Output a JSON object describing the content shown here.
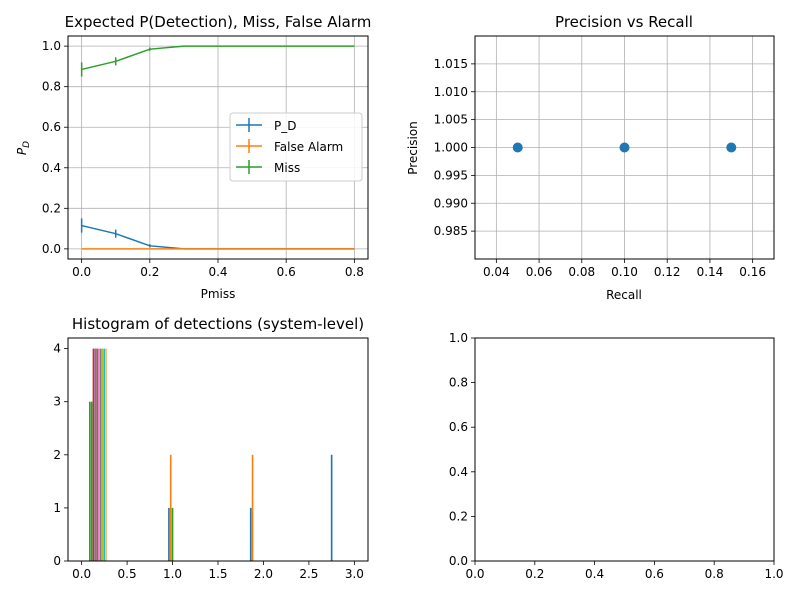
{
  "chart_data": [
    {
      "type": "line",
      "title": "Expected P(Detection), Miss, False Alarm",
      "xlabel": "Pmiss",
      "ylabel": "P_D",
      "xlim": [
        -0.04,
        0.84
      ],
      "ylim": [
        -0.05,
        1.05
      ],
      "xticks": [
        0.0,
        0.2,
        0.4,
        0.6,
        0.8
      ],
      "xtick_labels": [
        "0.0",
        "0.2",
        "0.4",
        "0.6",
        "0.8"
      ],
      "yticks": [
        0.0,
        0.2,
        0.4,
        0.6,
        0.8,
        1.0
      ],
      "ytick_labels": [
        "0.0",
        "0.2",
        "0.4",
        "0.6",
        "0.8",
        "1.0"
      ],
      "grid": true,
      "legend_position": "center-right",
      "x": [
        0.0,
        0.1,
        0.2,
        0.3,
        0.4,
        0.5,
        0.6,
        0.7,
        0.8
      ],
      "series": [
        {
          "name": "P_D",
          "color": "#1f77b4",
          "values": [
            0.115,
            0.075,
            0.015,
            0.0,
            0.0,
            0.0,
            0.0,
            0.0,
            0.0
          ],
          "errors": [
            0.035,
            0.02,
            0.008,
            0.0,
            0.0,
            0.0,
            0.0,
            0.0,
            0.0
          ]
        },
        {
          "name": "False Alarm",
          "color": "#ff7f0e",
          "values": [
            0.0,
            0.0,
            0.0,
            0.0,
            0.0,
            0.0,
            0.0,
            0.0,
            0.0
          ],
          "errors": [
            0.0,
            0.0,
            0.0,
            0.0,
            0.0,
            0.0,
            0.0,
            0.0,
            0.0
          ]
        },
        {
          "name": "Miss",
          "color": "#2ca02c",
          "values": [
            0.885,
            0.925,
            0.985,
            1.0,
            1.0,
            1.0,
            1.0,
            1.0,
            1.0
          ],
          "errors": [
            0.035,
            0.02,
            0.008,
            0.0,
            0.0,
            0.0,
            0.0,
            0.0,
            0.0
          ]
        }
      ]
    },
    {
      "type": "scatter",
      "title": "Precision vs Recall",
      "xlabel": "Recall",
      "ylabel": "Precision",
      "xlim": [
        0.03,
        0.17
      ],
      "ylim": [
        0.98,
        1.02
      ],
      "xticks": [
        0.04,
        0.06,
        0.08,
        0.1,
        0.12,
        0.14,
        0.16
      ],
      "xtick_labels": [
        "0.04",
        "0.06",
        "0.08",
        "0.10",
        "0.12",
        "0.14",
        "0.16"
      ],
      "yticks": [
        0.985,
        0.99,
        0.995,
        1.0,
        1.005,
        1.01,
        1.015
      ],
      "ytick_labels": [
        "0.985",
        "0.990",
        "0.995",
        "1.000",
        "1.005",
        "1.010",
        "1.015"
      ],
      "grid": true,
      "color": "#1f77b4",
      "points": [
        {
          "x": 0.05,
          "y": 1.0
        },
        {
          "x": 0.1,
          "y": 1.0
        },
        {
          "x": 0.15,
          "y": 1.0
        }
      ]
    },
    {
      "type": "bar",
      "title": "Histogram of detections (system-level)",
      "xlabel": "",
      "ylabel": "",
      "xlim": [
        -0.15,
        3.15
      ],
      "ylim": [
        0,
        4.2
      ],
      "xticks": [
        0.0,
        0.5,
        1.0,
        1.5,
        2.0,
        2.5,
        3.0
      ],
      "xtick_labels": [
        "0.0",
        "0.5",
        "1.0",
        "1.5",
        "2.0",
        "2.5",
        "3.0"
      ],
      "yticks": [
        0,
        1,
        2,
        3,
        4
      ],
      "ytick_labels": [
        "0",
        "1",
        "2",
        "3",
        "4"
      ],
      "grid": false,
      "bar_width": 0.018,
      "bars": [
        {
          "x": 0.09,
          "value": 3,
          "color": "#2ca02c"
        },
        {
          "x": 0.11,
          "value": 3,
          "color": "#2ca02c"
        },
        {
          "x": 0.13,
          "value": 4,
          "color": "#d62728"
        },
        {
          "x": 0.15,
          "value": 4,
          "color": "#9467bd"
        },
        {
          "x": 0.17,
          "value": 4,
          "color": "#8c564b"
        },
        {
          "x": 0.19,
          "value": 4,
          "color": "#e377c2"
        },
        {
          "x": 0.21,
          "value": 4,
          "color": "#7f7f7f"
        },
        {
          "x": 0.23,
          "value": 4,
          "color": "#bcbd22"
        },
        {
          "x": 0.25,
          "value": 4,
          "color": "#17becf"
        },
        {
          "x": 0.27,
          "value": 4,
          "color": "#ffbb78"
        },
        {
          "x": 0.96,
          "value": 1,
          "color": "#1f77b4"
        },
        {
          "x": 0.98,
          "value": 2,
          "color": "#ff7f0e"
        },
        {
          "x": 1.0,
          "value": 1,
          "color": "#2ca02c"
        },
        {
          "x": 1.86,
          "value": 1,
          "color": "#1f77b4"
        },
        {
          "x": 1.88,
          "value": 2,
          "color": "#ff7f0e"
        },
        {
          "x": 2.75,
          "value": 2,
          "color": "#1f77b4"
        }
      ]
    },
    {
      "type": "line",
      "title": "",
      "xlabel": "",
      "ylabel": "",
      "xlim": [
        0.0,
        1.0
      ],
      "ylim": [
        0.0,
        1.0
      ],
      "xticks": [
        0.0,
        0.2,
        0.4,
        0.6,
        0.8,
        1.0
      ],
      "xtick_labels": [
        "0.0",
        "0.2",
        "0.4",
        "0.6",
        "0.8",
        "1.0"
      ],
      "yticks": [
        0.0,
        0.2,
        0.4,
        0.6,
        0.8,
        1.0
      ],
      "ytick_labels": [
        "0.0",
        "0.2",
        "0.4",
        "0.6",
        "0.8",
        "1.0"
      ],
      "grid": false,
      "series": []
    }
  ]
}
